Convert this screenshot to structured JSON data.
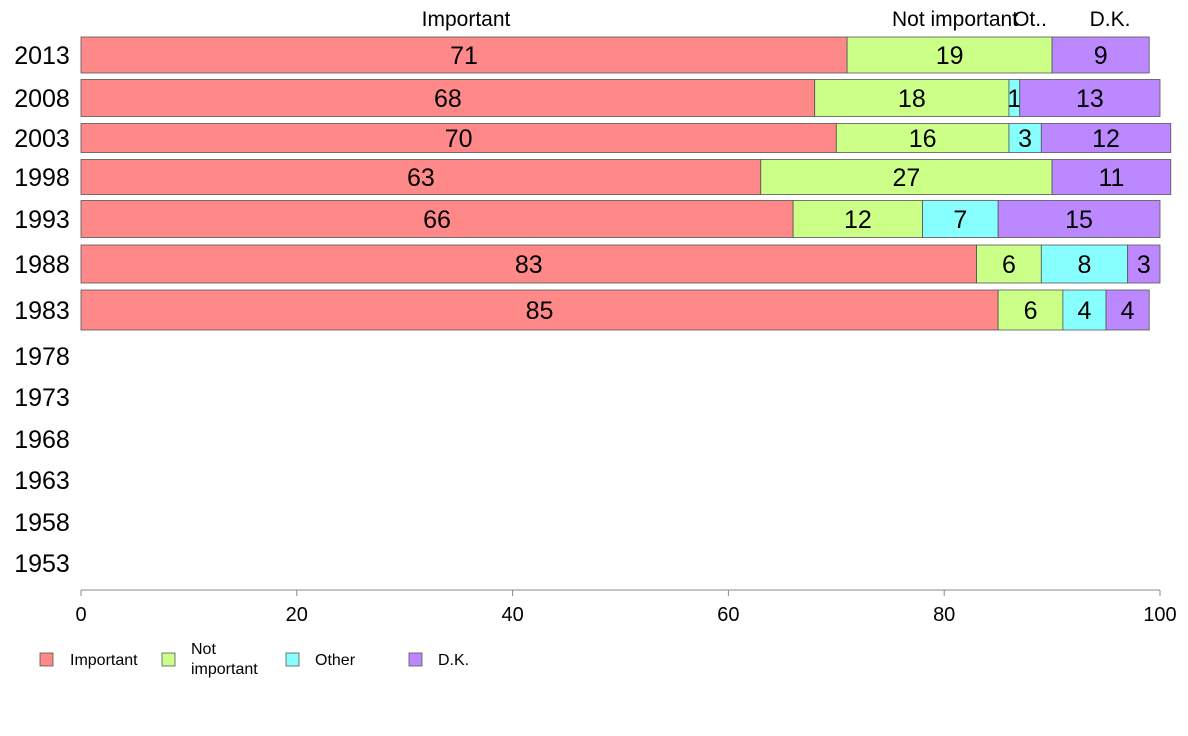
{
  "chart_data": {
    "type": "bar",
    "orientation": "horizontal",
    "stacked": true,
    "years": [
      "2013",
      "2008",
      "2003",
      "1998",
      "1993",
      "1988",
      "1983",
      "1978",
      "1973",
      "1968",
      "1963",
      "1958",
      "1953"
    ],
    "series": [
      {
        "name": "Important",
        "color": "#ff8888",
        "values": [
          71,
          68,
          70,
          63,
          66,
          83,
          85,
          null,
          null,
          null,
          null,
          null,
          null
        ]
      },
      {
        "name": "Not important",
        "color": "#ccff88",
        "values": [
          19,
          18,
          16,
          27,
          12,
          6,
          6,
          null,
          null,
          null,
          null,
          null,
          null
        ]
      },
      {
        "name": "Other",
        "color": "#88ffff",
        "values": [
          null,
          1,
          3,
          null,
          7,
          8,
          4,
          null,
          null,
          null,
          null,
          null,
          null
        ]
      },
      {
        "name": "D.K.",
        "color": "#bb88ff",
        "values": [
          9,
          13,
          12,
          11,
          15,
          3,
          4,
          null,
          null,
          null,
          null,
          null,
          null
        ]
      }
    ],
    "header_labels": [
      "Important",
      "Not important",
      "Ot..",
      "D.K."
    ],
    "legend_labels": [
      "Important",
      "Not\nimportant",
      "Other",
      "D.K."
    ],
    "xlim": [
      0,
      100
    ],
    "x_ticks": [
      0,
      20,
      40,
      60,
      80,
      100
    ],
    "grid": false,
    "legend_position": "bottom-left"
  }
}
